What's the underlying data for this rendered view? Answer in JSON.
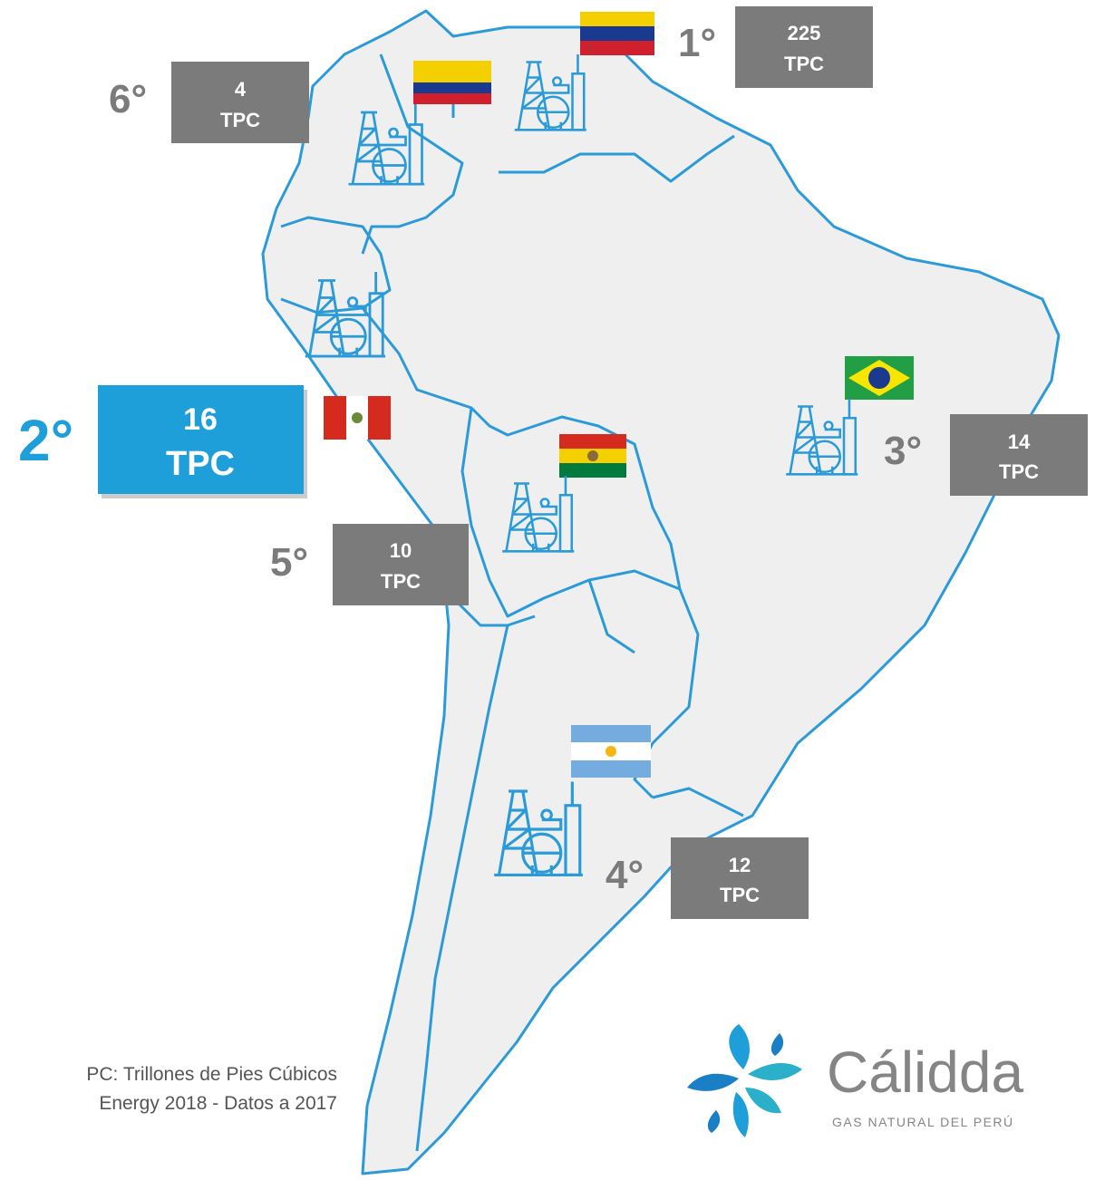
{
  "countries": [
    {
      "rank": "1°",
      "value": "225",
      "unit": "TPC"
    },
    {
      "rank": "2°",
      "value": "16",
      "unit": "TPC"
    },
    {
      "rank": "3°",
      "value": "14",
      "unit": "TPC"
    },
    {
      "rank": "4°",
      "value": "12",
      "unit": "TPC"
    },
    {
      "rank": "5°",
      "value": "10",
      "unit": "TPC"
    },
    {
      "rank": "6°",
      "value": "4",
      "unit": "TPC"
    }
  ],
  "footnote": [
    "PC: Trillones de Pies Cúbicos",
    "Energy 2018 - Datos a 2017"
  ],
  "logo": {
    "name": "Cálidda",
    "tagline": "GAS NATURAL DEL PERÚ"
  }
}
